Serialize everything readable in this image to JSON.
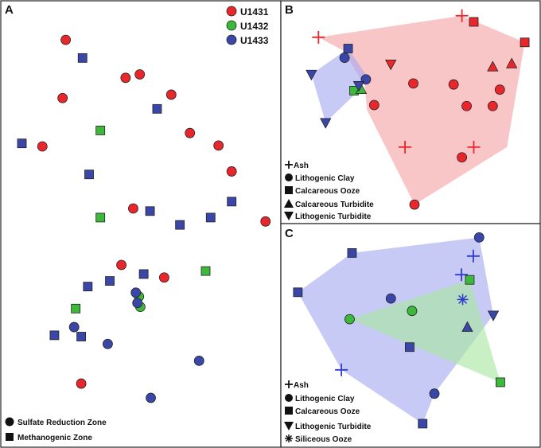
{
  "colors": {
    "U1431": "#e8262b",
    "U1432": "#3cb83a",
    "U1433": "#3a46a8",
    "cross_red": "#e8262b",
    "cross_blue": "#2f3ad1",
    "hull_red": "#f4a3a5",
    "hull_blue": "#a7a9f0",
    "hull_green": "#a8e6a0"
  },
  "chart_data": [
    {
      "panel": "A",
      "type": "scatter",
      "title": "A",
      "xlim": [
        0,
        100
      ],
      "ylim": [
        0,
        100
      ],
      "legend_position": "top-right",
      "legend": [
        {
          "label": "U1431",
          "site": "U1431"
        },
        {
          "label": "U1432",
          "site": "U1432"
        },
        {
          "label": "U1433",
          "site": "U1433"
        }
      ],
      "shape_legend_position": "bottom-left",
      "shape_legend": [
        {
          "label": "Sulfate Reduction Zone",
          "shape": "circle"
        },
        {
          "label": "Methanogenic Zone",
          "shape": "square"
        }
      ],
      "points": [
        {
          "x": 21.4,
          "y": 92.6,
          "shape": "circle",
          "site": "U1431"
        },
        {
          "x": 44.2,
          "y": 83.8,
          "shape": "circle",
          "site": "U1431"
        },
        {
          "x": 49.6,
          "y": 84.6,
          "shape": "circle",
          "site": "U1431"
        },
        {
          "x": 20.2,
          "y": 79.1,
          "shape": "circle",
          "site": "U1431"
        },
        {
          "x": 61.6,
          "y": 79.9,
          "shape": "circle",
          "site": "U1431"
        },
        {
          "x": 68.7,
          "y": 71.0,
          "shape": "circle",
          "site": "U1431"
        },
        {
          "x": 12.5,
          "y": 67.9,
          "shape": "circle",
          "site": "U1431"
        },
        {
          "x": 79.6,
          "y": 68.1,
          "shape": "circle",
          "site": "U1431"
        },
        {
          "x": 84.6,
          "y": 62.1,
          "shape": "circle",
          "site": "U1431"
        },
        {
          "x": 47.1,
          "y": 53.5,
          "shape": "circle",
          "site": "U1431"
        },
        {
          "x": 97.5,
          "y": 50.5,
          "shape": "circle",
          "site": "U1431"
        },
        {
          "x": 42.6,
          "y": 40.4,
          "shape": "circle",
          "site": "U1431"
        },
        {
          "x": 58.9,
          "y": 37.5,
          "shape": "circle",
          "site": "U1431"
        },
        {
          "x": 27.3,
          "y": 12.9,
          "shape": "circle",
          "site": "U1431"
        },
        {
          "x": 49.3,
          "y": 33.1,
          "shape": "circle",
          "site": "U1432"
        },
        {
          "x": 49.8,
          "y": 30.7,
          "shape": "circle",
          "site": "U1432"
        },
        {
          "x": 48.1,
          "y": 34.0,
          "shape": "circle",
          "site": "U1433"
        },
        {
          "x": 48.7,
          "y": 31.6,
          "shape": "circle",
          "site": "U1433"
        },
        {
          "x": 24.6,
          "y": 26.0,
          "shape": "circle",
          "site": "U1433"
        },
        {
          "x": 37.4,
          "y": 22.1,
          "shape": "circle",
          "site": "U1433"
        },
        {
          "x": 72.2,
          "y": 18.2,
          "shape": "circle",
          "site": "U1433"
        },
        {
          "x": 53.8,
          "y": 9.6,
          "shape": "circle",
          "site": "U1433"
        },
        {
          "x": 34.6,
          "y": 71.6,
          "shape": "square",
          "site": "U1432"
        },
        {
          "x": 34.6,
          "y": 51.4,
          "shape": "square",
          "site": "U1432"
        },
        {
          "x": 74.7,
          "y": 39.0,
          "shape": "square",
          "site": "U1432"
        },
        {
          "x": 25.2,
          "y": 30.3,
          "shape": "square",
          "site": "U1432"
        },
        {
          "x": 27.8,
          "y": 88.4,
          "shape": "square",
          "site": "U1433"
        },
        {
          "x": 56.2,
          "y": 76.6,
          "shape": "square",
          "site": "U1433"
        },
        {
          "x": 4.7,
          "y": 68.6,
          "shape": "square",
          "site": "U1433"
        },
        {
          "x": 30.3,
          "y": 61.4,
          "shape": "square",
          "site": "U1433"
        },
        {
          "x": 84.6,
          "y": 55.1,
          "shape": "square",
          "site": "U1433"
        },
        {
          "x": 53.5,
          "y": 52.9,
          "shape": "square",
          "site": "U1433"
        },
        {
          "x": 76.6,
          "y": 51.4,
          "shape": "square",
          "site": "U1433"
        },
        {
          "x": 64.9,
          "y": 49.7,
          "shape": "square",
          "site": "U1433"
        },
        {
          "x": 51.1,
          "y": 38.3,
          "shape": "square",
          "site": "U1433"
        },
        {
          "x": 38.2,
          "y": 36.7,
          "shape": "square",
          "site": "U1433"
        },
        {
          "x": 29.8,
          "y": 35.4,
          "shape": "square",
          "site": "U1433"
        },
        {
          "x": 17.1,
          "y": 24.1,
          "shape": "square",
          "site": "U1433"
        },
        {
          "x": 27.3,
          "y": 23.8,
          "shape": "square",
          "site": "U1433"
        }
      ]
    },
    {
      "panel": "B",
      "type": "scatter",
      "title": "B",
      "xlim": [
        0,
        100
      ],
      "ylim": [
        0,
        100
      ],
      "legend_position": "bottom-left",
      "legend": [
        {
          "label": "Ash",
          "shape": "cross"
        },
        {
          "label": "Lithogenic Clay",
          "shape": "circle"
        },
        {
          "label": "Calcareous Ooze",
          "shape": "square"
        },
        {
          "label": "Calcareous Turbidite",
          "shape": "triangle-up"
        },
        {
          "label": "Lithogenic Turbidite",
          "shape": "triangle-down"
        }
      ],
      "hulls": [
        {
          "color": "hull_red",
          "vertices": [
            [
              9.5,
              86.5
            ],
            [
              70.0,
              97.0
            ],
            [
              96.5,
              84.0
            ],
            [
              89.0,
              33.0
            ],
            [
              50.0,
              5.0
            ],
            [
              30.0,
              51.0
            ],
            [
              29.0,
              63.0
            ],
            [
              20.0,
              80.0
            ]
          ]
        },
        {
          "color": "hull_blue",
          "vertices": [
            [
              6.5,
              68.5
            ],
            [
              22.0,
              81.0
            ],
            [
              30.0,
              67.5
            ],
            [
              26.5,
              60.5
            ],
            [
              12.5,
              45.0
            ]
          ]
        }
      ],
      "points": [
        {
          "x": 9.5,
          "y": 86.5,
          "shape": "cross",
          "site": "U1431"
        },
        {
          "x": 70.0,
          "y": 97.0,
          "shape": "cross",
          "site": "U1431"
        },
        {
          "x": 46.0,
          "y": 33.0,
          "shape": "cross",
          "site": "U1431"
        },
        {
          "x": 75.0,
          "y": 33.0,
          "shape": "cross",
          "site": "U1431"
        },
        {
          "x": 20.5,
          "y": 76.5,
          "shape": "circle",
          "site": "U1433"
        },
        {
          "x": 29.5,
          "y": 66.0,
          "shape": "circle",
          "site": "U1433"
        },
        {
          "x": 49.5,
          "y": 64.0,
          "shape": "circle",
          "site": "U1431"
        },
        {
          "x": 66.5,
          "y": 63.5,
          "shape": "circle",
          "site": "U1431"
        },
        {
          "x": 86.0,
          "y": 61.0,
          "shape": "circle",
          "site": "U1431"
        },
        {
          "x": 33.0,
          "y": 53.5,
          "shape": "circle",
          "site": "U1431"
        },
        {
          "x": 72.0,
          "y": 53.0,
          "shape": "circle",
          "site": "U1431"
        },
        {
          "x": 83.0,
          "y": 53.0,
          "shape": "circle",
          "site": "U1431"
        },
        {
          "x": 70.0,
          "y": 28.0,
          "shape": "circle",
          "site": "U1431"
        },
        {
          "x": 50.0,
          "y": 5.0,
          "shape": "circle",
          "site": "U1431"
        },
        {
          "x": 22.0,
          "y": 81.0,
          "shape": "square",
          "site": "U1433"
        },
        {
          "x": 75.0,
          "y": 94.0,
          "shape": "square",
          "site": "U1431"
        },
        {
          "x": 96.5,
          "y": 84.0,
          "shape": "square",
          "site": "U1431"
        },
        {
          "x": 24.5,
          "y": 60.5,
          "shape": "square",
          "site": "U1432"
        },
        {
          "x": 27.5,
          "y": 61.0,
          "shape": "triangle-up",
          "site": "U1432"
        },
        {
          "x": 83.0,
          "y": 72.0,
          "shape": "triangle-up",
          "site": "U1431"
        },
        {
          "x": 91.0,
          "y": 73.5,
          "shape": "triangle-up",
          "site": "U1431"
        },
        {
          "x": 6.5,
          "y": 68.5,
          "shape": "triangle-down",
          "site": "U1433"
        },
        {
          "x": 12.5,
          "y": 45.0,
          "shape": "triangle-down",
          "site": "U1433"
        },
        {
          "x": 26.5,
          "y": 63.0,
          "shape": "triangle-down",
          "site": "U1433"
        },
        {
          "x": 40.0,
          "y": 73.5,
          "shape": "triangle-down",
          "site": "U1431"
        }
      ]
    },
    {
      "panel": "C",
      "type": "scatter",
      "title": "C",
      "xlim": [
        0,
        100
      ],
      "ylim": [
        0,
        100
      ],
      "legend_position": "bottom-left",
      "legend": [
        {
          "label": "Ash",
          "shape": "cross"
        },
        {
          "label": "Lithogenic Clay",
          "shape": "circle"
        },
        {
          "label": "Calcareous Ooze",
          "shape": "square"
        },
        {
          "label": "Lithogenic Turbidite",
          "shape": "triangle-down"
        },
        {
          "label": "Siliceous Ooze",
          "shape": "asterisk"
        }
      ],
      "hulls": [
        {
          "color": "hull_blue",
          "vertices": [
            [
              3.5,
              69.5
            ],
            [
              26.5,
              88.5
            ],
            [
              80.5,
              96.0
            ],
            [
              86.5,
              58.5
            ],
            [
              61.5,
              20.5
            ],
            [
              56.5,
              6.0
            ],
            [
              22.0,
              32.0
            ]
          ]
        },
        {
          "color": "hull_green",
          "vertices": [
            [
              25.5,
              56.5
            ],
            [
              76.5,
              75.5
            ],
            [
              89.5,
              26.0
            ]
          ]
        }
      ],
      "points": [
        {
          "x": 73.0,
          "y": 78.0,
          "shape": "cross",
          "site": "U1433",
          "color": "cross_blue"
        },
        {
          "x": 78.0,
          "y": 87.0,
          "shape": "cross",
          "site": "U1433",
          "color": "cross_blue"
        },
        {
          "x": 22.0,
          "y": 32.0,
          "shape": "cross",
          "site": "U1433",
          "color": "cross_blue"
        },
        {
          "x": 80.5,
          "y": 96.0,
          "shape": "circle",
          "site": "U1433"
        },
        {
          "x": 43.0,
          "y": 66.5,
          "shape": "circle",
          "site": "U1433"
        },
        {
          "x": 25.5,
          "y": 56.5,
          "shape": "circle",
          "site": "U1432"
        },
        {
          "x": 52.0,
          "y": 60.5,
          "shape": "circle",
          "site": "U1432"
        },
        {
          "x": 61.5,
          "y": 20.5,
          "shape": "circle",
          "site": "U1433"
        },
        {
          "x": 26.5,
          "y": 88.5,
          "shape": "square",
          "site": "U1433"
        },
        {
          "x": 3.5,
          "y": 69.5,
          "shape": "square",
          "site": "U1433"
        },
        {
          "x": 76.5,
          "y": 75.5,
          "shape": "square",
          "site": "U1432"
        },
        {
          "x": 51.0,
          "y": 43.0,
          "shape": "square",
          "site": "U1433"
        },
        {
          "x": 89.5,
          "y": 26.0,
          "shape": "square",
          "site": "U1432"
        },
        {
          "x": 56.5,
          "y": 6.0,
          "shape": "square",
          "site": "U1433"
        },
        {
          "x": 75.5,
          "y": 52.5,
          "shape": "triangle-up",
          "site": "U1433"
        },
        {
          "x": 86.5,
          "y": 58.5,
          "shape": "triangle-down",
          "site": "U1433"
        },
        {
          "x": 73.5,
          "y": 66.0,
          "shape": "asterisk",
          "site": "U1433",
          "color": "cross_blue"
        }
      ]
    }
  ]
}
